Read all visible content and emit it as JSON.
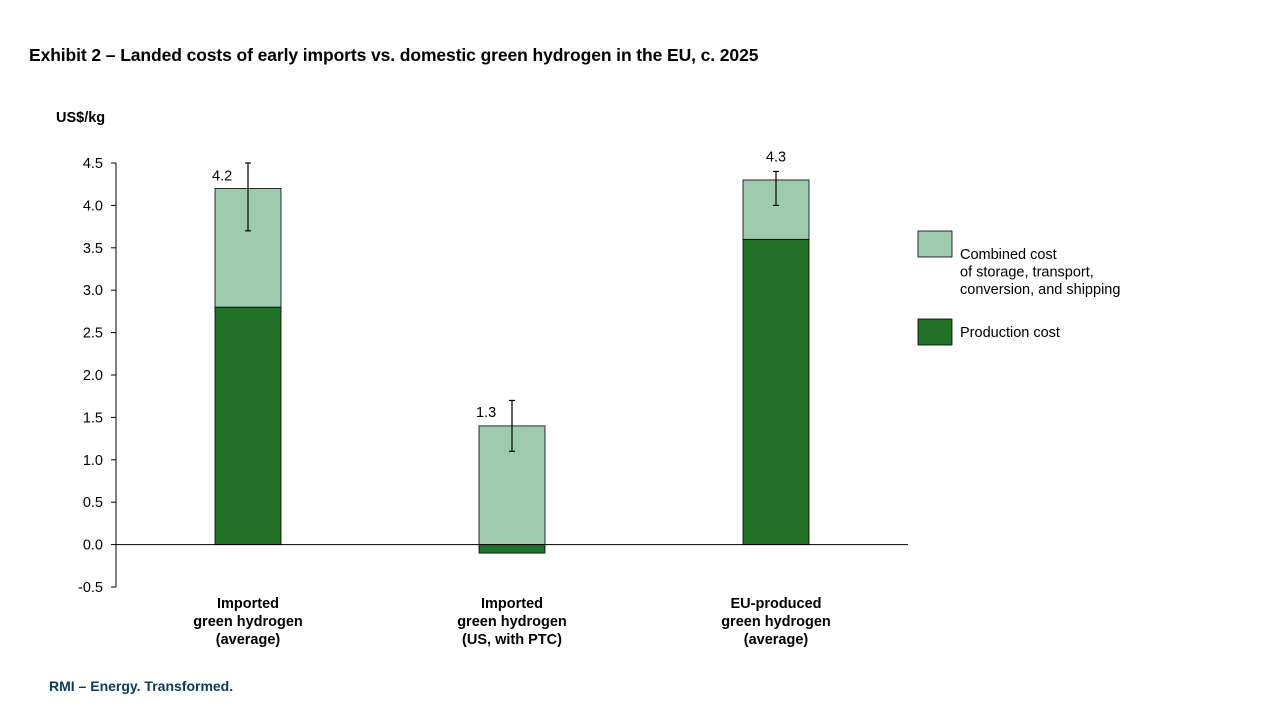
{
  "title": "Exhibit 2 – Landed costs of early imports vs. domestic green hydrogen in the EU, c. 2025",
  "footer": "RMI – Energy. Transformed.",
  "chart_data": {
    "type": "bar",
    "stacked": true,
    "y_unit_label": "US$/kg",
    "ylim": [
      -0.5,
      4.5
    ],
    "yticks": [
      "4.5",
      "4.0",
      "3.5",
      "3.0",
      "2.5",
      "2.0",
      "1.5",
      "1.0",
      "0.5",
      "0.0",
      "-0.5"
    ],
    "ytick_values": [
      4.5,
      4.0,
      3.5,
      3.0,
      2.5,
      2.0,
      1.5,
      1.0,
      0.5,
      0.0,
      -0.5
    ],
    "grid": false,
    "legend_position": "right",
    "categories": [
      [
        "Imported",
        "green hydrogen",
        "(average)"
      ],
      [
        "Imported",
        "green hydrogen",
        "(US, with PTC)"
      ],
      [
        "EU-produced",
        "green hydrogen",
        "(average)"
      ]
    ],
    "series": [
      {
        "name": "Production cost",
        "color": "#217129",
        "values": [
          2.8,
          -0.1,
          3.6
        ]
      },
      {
        "name": "Combined cost of storage, transport, conversion, and shipping",
        "color": "#9ecbae",
        "values": [
          1.4,
          1.4,
          0.7
        ]
      }
    ],
    "totals": [
      "4.2",
      "1.3",
      "4.3"
    ],
    "error_bars": [
      {
        "low": 3.7,
        "high": 4.5
      },
      {
        "low": 1.1,
        "high": 1.7
      },
      {
        "low": 4.0,
        "high": 4.4
      }
    ],
    "legend": [
      {
        "lines": [
          "Combined cost",
          "of storage, transport,",
          "conversion, and shipping"
        ],
        "color": "#9ecbae"
      },
      {
        "lines": [
          "Production cost"
        ],
        "color": "#217129"
      }
    ]
  }
}
